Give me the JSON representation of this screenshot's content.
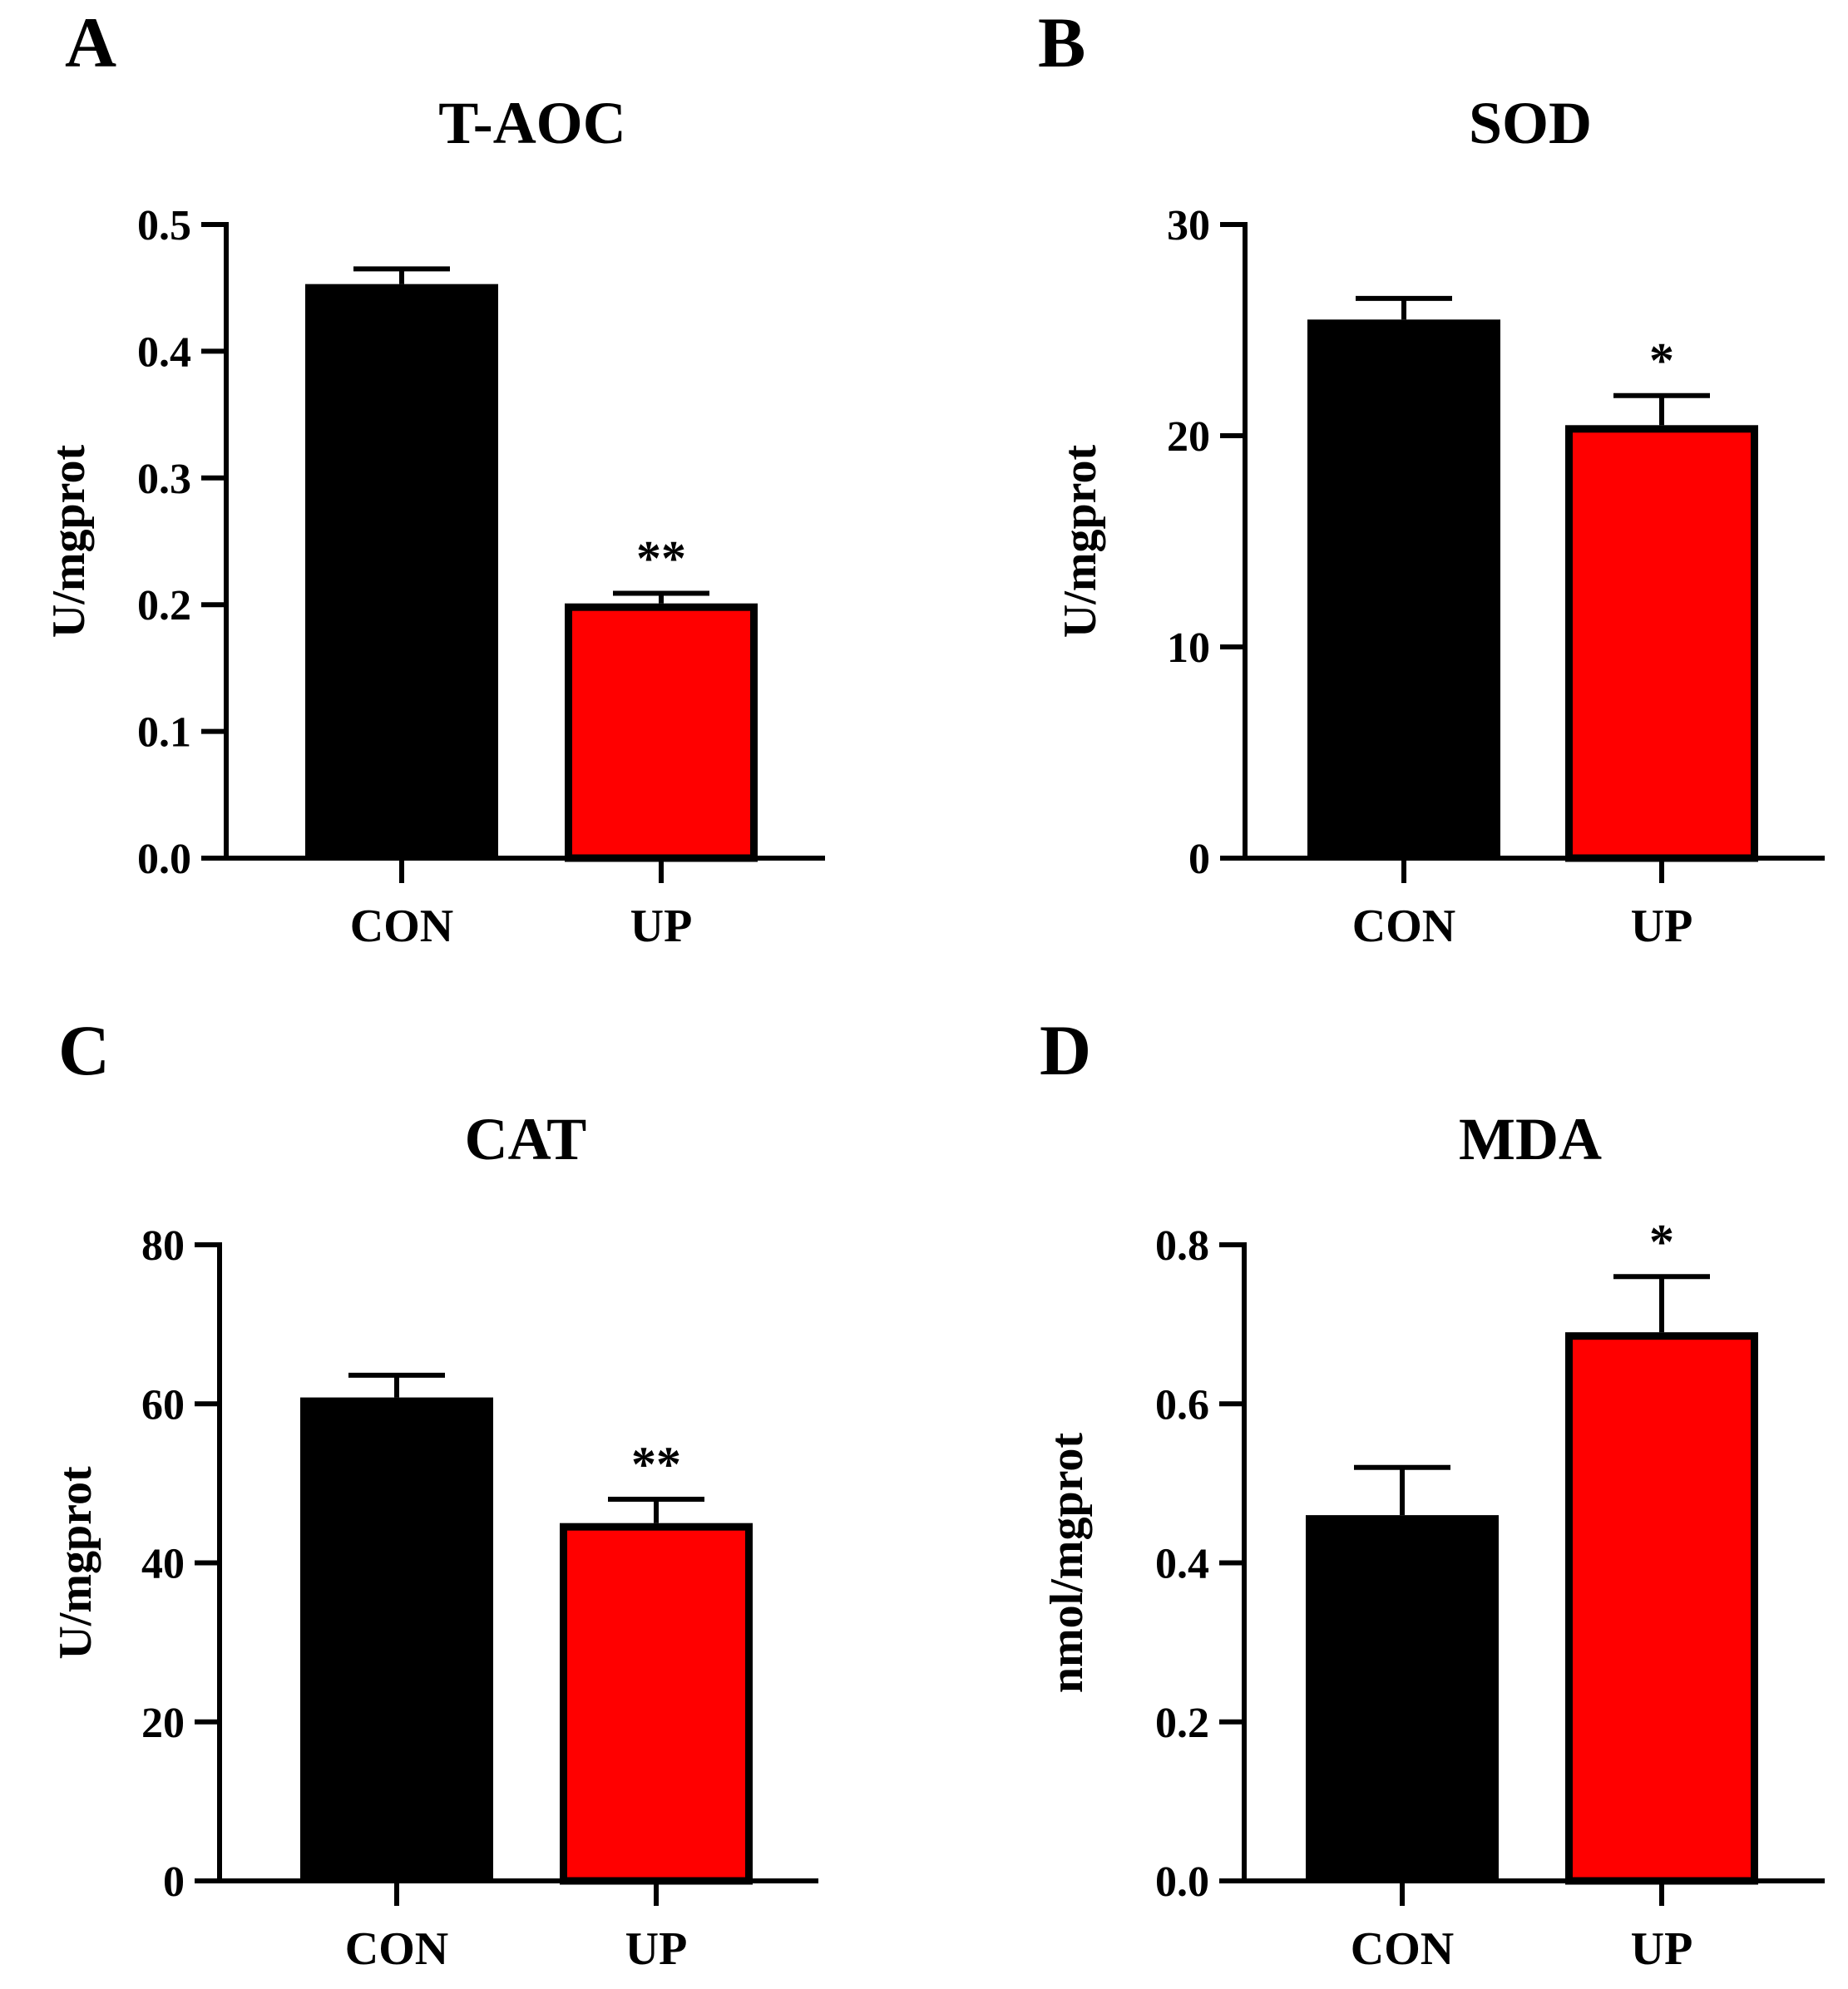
{
  "chart_data": [
    {
      "panel": "A",
      "type": "bar",
      "title": "T-AOC",
      "ylabel": "U/mgprot",
      "xlabel": "",
      "categories": [
        "CON",
        "UP"
      ],
      "values": [
        0.453,
        0.201
      ],
      "errors": [
        0.012,
        0.008
      ],
      "colors": [
        "#000000",
        "#ff0000"
      ],
      "significance": [
        "",
        "**"
      ],
      "ylim": [
        0,
        0.5
      ],
      "yticks": [
        0.0,
        0.1,
        0.2,
        0.3,
        0.4,
        0.5
      ],
      "ytick_labels": [
        "0.0",
        "0.1",
        "0.2",
        "0.3",
        "0.4",
        "0.5"
      ]
    },
    {
      "panel": "B",
      "type": "bar",
      "title": "SOD",
      "ylabel": "U/mgprot",
      "xlabel": "",
      "categories": [
        "CON",
        "UP"
      ],
      "values": [
        25.5,
        20.5
      ],
      "errors": [
        1.0,
        1.4
      ],
      "colors": [
        "#000000",
        "#ff0000"
      ],
      "significance": [
        "",
        "*"
      ],
      "ylim": [
        0,
        30
      ],
      "yticks": [
        0,
        10,
        20,
        30
      ],
      "ytick_labels": [
        "0",
        "10",
        "20",
        "30"
      ]
    },
    {
      "panel": "C",
      "type": "bar",
      "title": "CAT",
      "ylabel": "U/mgprot",
      "xlabel": "",
      "categories": [
        "CON",
        "UP"
      ],
      "values": [
        60.8,
        45.0
      ],
      "errors": [
        2.8,
        3.0
      ],
      "colors": [
        "#000000",
        "#ff0000"
      ],
      "significance": [
        "",
        "**"
      ],
      "ylim": [
        0,
        80
      ],
      "yticks": [
        0,
        20,
        40,
        60,
        80
      ],
      "ytick_labels": [
        "0",
        "20",
        "40",
        "60",
        "80"
      ]
    },
    {
      "panel": "D",
      "type": "bar",
      "title": "MDA",
      "ylabel": "nmol/mgprot",
      "xlabel": "",
      "categories": [
        "CON",
        "UP"
      ],
      "values": [
        0.46,
        0.69
      ],
      "errors": [
        0.06,
        0.07
      ],
      "colors": [
        "#000000",
        "#ff0000"
      ],
      "significance": [
        "",
        "*"
      ],
      "ylim": [
        0,
        0.8
      ],
      "yticks": [
        0.0,
        0.2,
        0.4,
        0.6,
        0.8
      ],
      "ytick_labels": [
        "0.0",
        "0.2",
        "0.4",
        "0.6",
        "0.8"
      ]
    }
  ]
}
